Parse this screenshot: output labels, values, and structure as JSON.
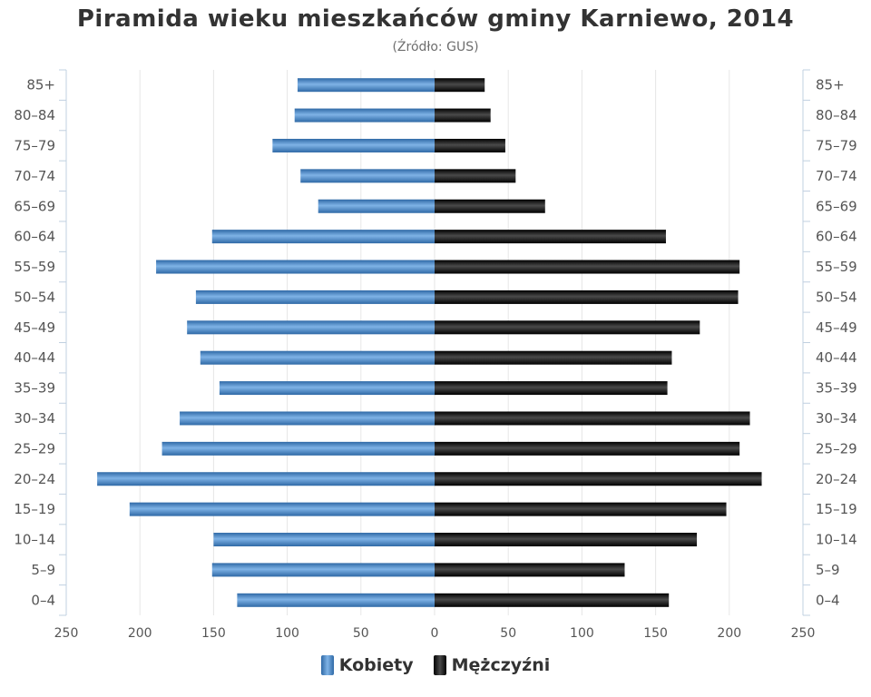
{
  "title": "Piramida wieku mieszkańców gminy Karniewo, 2014",
  "subtitle": "(Źródło: GUS)",
  "colors": {
    "female": "#3f7ec0",
    "female_light": "#7fb3e6",
    "male": "#111111",
    "male_light": "#4a4a4a",
    "grid": "#e6e6e6",
    "axis": "#c0d0e0",
    "text": "#555555"
  },
  "legend": {
    "female_label": "Kobiety",
    "male_label": "Mężczyźni"
  },
  "chart_data": {
    "type": "bar",
    "orientation": "horizontal",
    "subtype": "population-pyramid",
    "title": "Piramida wieku mieszkańców gminy Karniewo, 2014",
    "subtitle": "(Źródło: GUS)",
    "categories": [
      "0-4",
      "5-9",
      "10-14",
      "15-19",
      "20-24",
      "25-29",
      "30-34",
      "35-39",
      "40-44",
      "45-49",
      "50-54",
      "55-59",
      "60-64",
      "65-69",
      "70-74",
      "75-79",
      "80-84",
      "85+"
    ],
    "series": [
      {
        "name": "Kobiety",
        "side": "left",
        "values": [
          134,
          151,
          150,
          207,
          229,
          185,
          173,
          146,
          159,
          168,
          162,
          189,
          151,
          79,
          91,
          110,
          95,
          93
        ]
      },
      {
        "name": "Mężczyźni",
        "side": "right",
        "values": [
          159,
          129,
          178,
          198,
          222,
          207,
          214,
          158,
          161,
          180,
          206,
          207,
          157,
          75,
          55,
          48,
          38,
          34
        ]
      }
    ],
    "xlim": [
      -250,
      250
    ],
    "x_ticks": [
      -250,
      -200,
      -150,
      -100,
      -50,
      0,
      50,
      100,
      150,
      200,
      250
    ],
    "x_tick_labels": [
      "250",
      "200",
      "150",
      "100",
      "50",
      "0",
      "50",
      "100",
      "150",
      "200",
      "250"
    ],
    "grid": true,
    "category_labels_on_both_sides": true,
    "legend_position": "bottom-center",
    "xlabel": "",
    "ylabel": ""
  }
}
